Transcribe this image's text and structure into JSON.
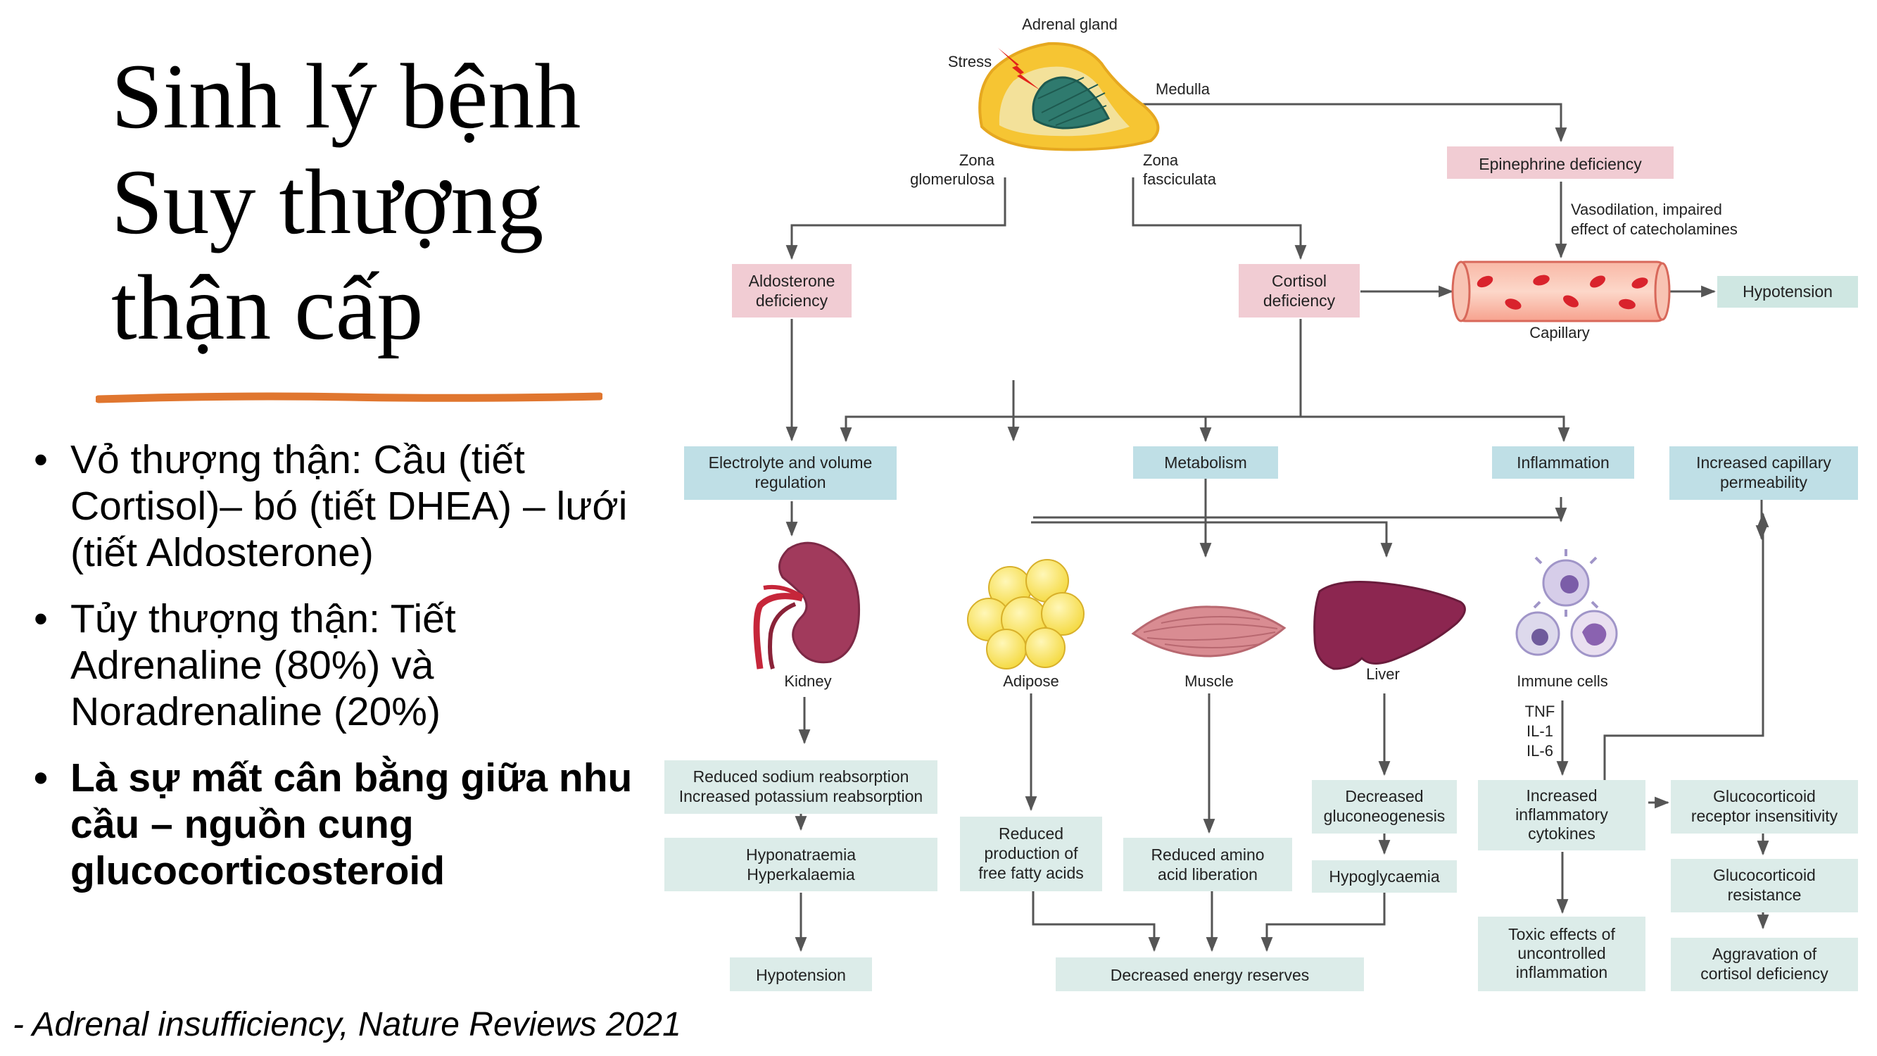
{
  "slide": {
    "title_lines": [
      "Sinh lý bệnh",
      "Suy thượng",
      "thận cấp"
    ],
    "bullets": [
      "Vỏ thượng thận: Cầu (tiết Cortisol)– bó (tiết DHEA) – lưới (tiết Aldosterone)",
      "Tủy thượng thận: Tiết Adrenaline (80%) và Noradrenaline (20%)",
      "Là sự mất cân bằng giữa nhu cầu – nguồn cung glucocorticosteroid"
    ],
    "citation": "- Adrenal insufficiency, Nature Reviews 2021"
  },
  "diagram": {
    "labels": {
      "adrenal_gland": "Adrenal gland",
      "stress": "Stress",
      "medulla": "Medulla",
      "zona_glomerulosa": [
        "Zona",
        "glomerulosa"
      ],
      "zona_fasciculata": [
        "Zona",
        "fasciculata"
      ],
      "vasodilation": [
        "Vasodilation, impaired",
        "effect of catecholamines"
      ],
      "capillary": "Capillary",
      "kidney": "Kidney",
      "adipose": "Adipose",
      "muscle": "Muscle",
      "liver": "Liver",
      "immune_cells": "Immune cells",
      "cytokines": [
        "TNF",
        "IL-1",
        "IL-6"
      ]
    },
    "boxes": {
      "epinephrine_deficiency": [
        "Epinephrine deficiency"
      ],
      "aldosterone_deficiency": [
        "Aldosterone",
        "deficiency"
      ],
      "cortisol_deficiency": [
        "Cortisol",
        "deficiency"
      ],
      "hypotension_top": [
        "Hypotension"
      ],
      "electrolyte_volume": [
        "Electrolyte and volume",
        "regulation"
      ],
      "metabolism": [
        "Metabolism"
      ],
      "inflammation": [
        "Inflammation"
      ],
      "capillary_permeability": [
        "Increased capillary",
        "permeability"
      ],
      "sodium_potassium": [
        "Reduced sodium reabsorption",
        "Increased potassium reabsorption"
      ],
      "hypo_hyper": [
        "Hyponatraemia",
        "Hyperkalaemia"
      ],
      "hypotension_bottom": [
        "Hypotension"
      ],
      "reduced_ffa": [
        "Reduced",
        "production of",
        "free fatty acids"
      ],
      "reduced_amino": [
        "Reduced amino",
        "acid liberation"
      ],
      "decreased_gluconeogenesis": [
        "Decreased",
        "gluconeogenesis"
      ],
      "hypoglycaemia": [
        "Hypoglycaemia"
      ],
      "decreased_energy": [
        "Decreased energy reserves"
      ],
      "increased_cytokines": [
        "Increased",
        "inflammatory",
        "cytokines"
      ],
      "toxic_effects": [
        "Toxic effects of",
        "uncontrolled",
        "inflammation"
      ],
      "gc_receptor_insensitivity": [
        "Glucocorticoid",
        "receptor insensitivity"
      ],
      "gc_resistance": [
        "Glucocorticoid",
        "resistance"
      ],
      "aggravation": [
        "Aggravation of",
        "cortisol deficiency"
      ]
    },
    "colors": {
      "pink_box": "#f1ccd3",
      "teal_box": "#bfdfe6",
      "light_box": "#dcece9",
      "arrow": "#555555",
      "underline": "#e0762f"
    }
  }
}
